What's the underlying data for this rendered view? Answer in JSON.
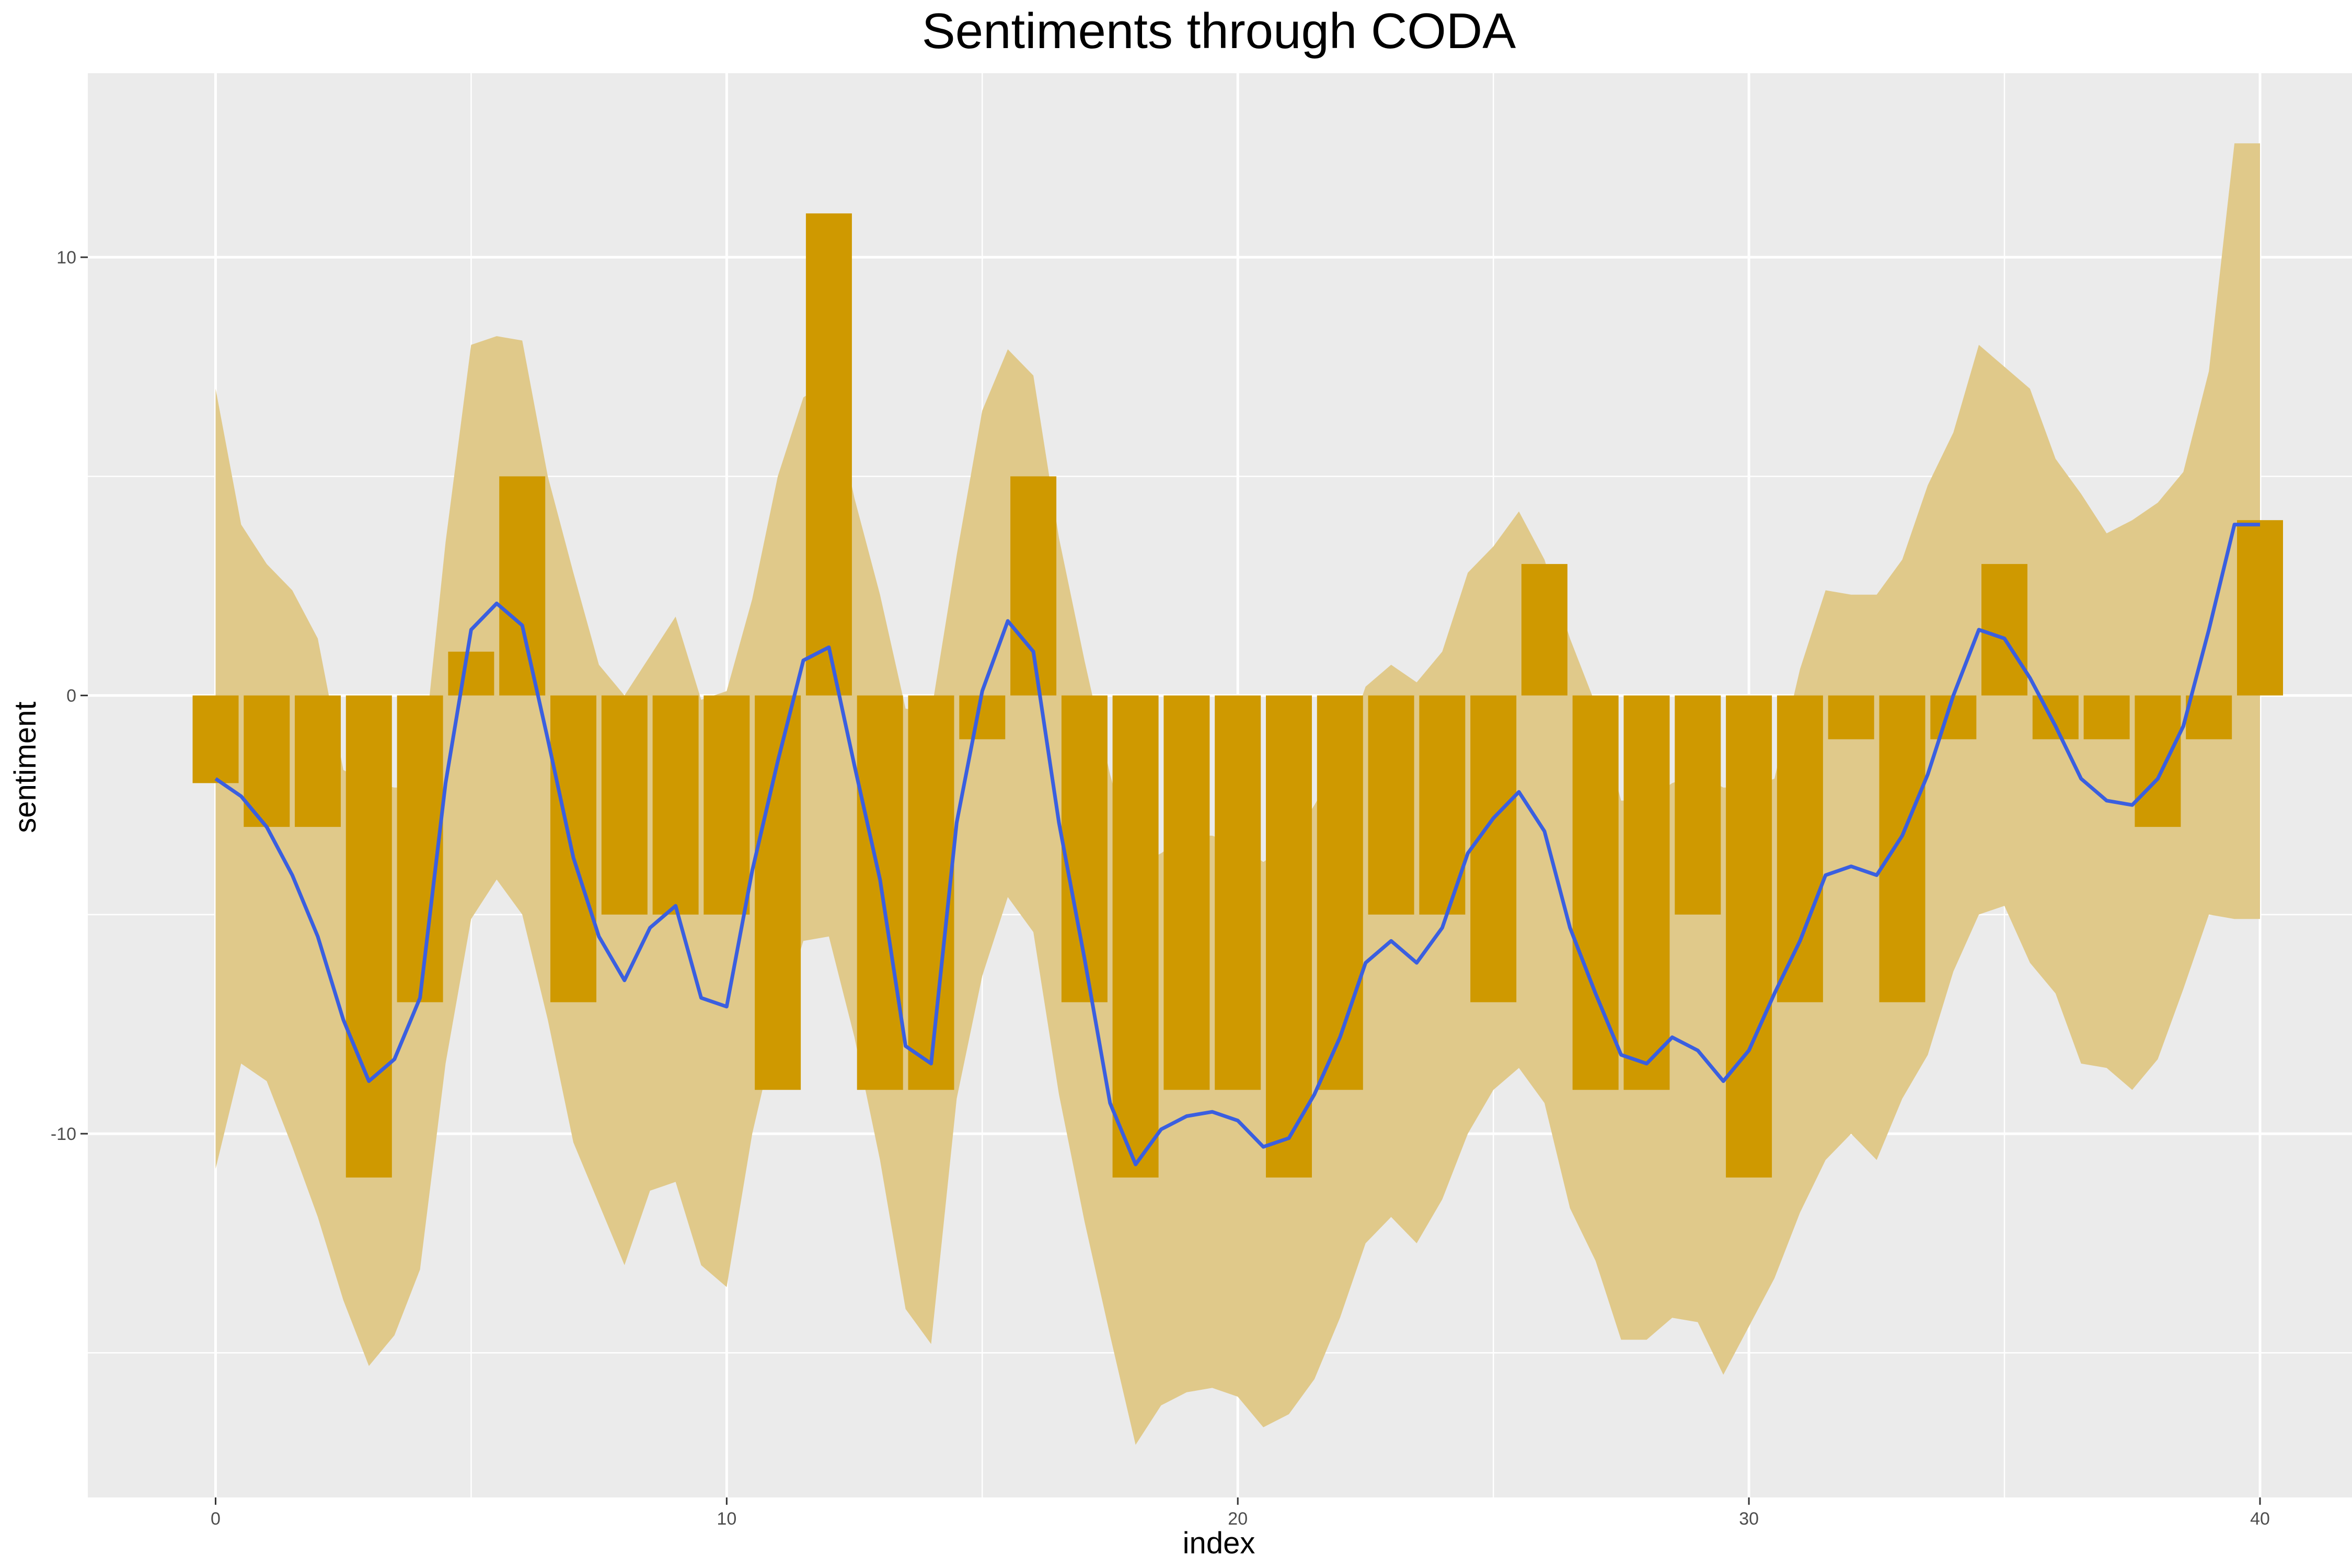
{
  "chart_data": {
    "type": "bar",
    "title": "Sentiments through CODA",
    "xlabel": "index",
    "ylabel": "sentiment",
    "xlim": [
      -2.5,
      41.8
    ],
    "ylim": [
      -18.3,
      14.2
    ],
    "x_ticks": [
      0,
      10,
      20,
      30,
      40
    ],
    "x_tick_labels": [
      "0",
      "10",
      "20",
      "30",
      "40"
    ],
    "y_ticks": [
      -10,
      0,
      10
    ],
    "y_tick_labels": [
      "-10",
      "0",
      "10"
    ],
    "grid": true,
    "legend": "none",
    "bars": {
      "x": [
        0,
        1,
        2,
        3,
        4,
        5,
        6,
        7,
        8,
        9,
        10,
        11,
        12,
        13,
        14,
        15,
        16,
        17,
        18,
        19,
        20,
        21,
        22,
        23,
        24,
        25,
        26,
        27,
        28,
        29,
        30,
        31,
        32,
        33,
        34,
        35,
        36,
        37,
        38,
        39,
        40
      ],
      "values": [
        -2,
        -3,
        -3,
        -11,
        -7,
        1,
        5,
        -7,
        -5,
        -5,
        -5,
        -9,
        11,
        -9,
        -9,
        -1,
        5,
        -7,
        -11,
        -9,
        -9,
        -11,
        -9,
        -5,
        -5,
        -7,
        3,
        -9,
        -9,
        -5,
        -11,
        -7,
        -1,
        -7,
        -1,
        3,
        -1,
        -1,
        -3,
        -1,
        4
      ],
      "width": 0.9
    },
    "smooth_line": {
      "x": [
        0,
        0.5,
        1,
        1.5,
        2,
        2.5,
        3,
        3.5,
        4,
        4.5,
        5,
        5.5,
        6,
        6.5,
        7,
        7.5,
        8,
        8.5,
        9,
        9.5,
        10,
        10.5,
        11,
        11.5,
        12,
        12.5,
        13,
        13.5,
        14,
        14.5,
        15,
        15.5,
        16,
        16.5,
        17,
        17.5,
        18,
        18.5,
        19,
        19.5,
        20,
        20.5,
        21,
        21.5,
        22,
        22.5,
        23,
        23.5,
        24,
        24.5,
        25,
        25.5,
        26,
        26.5,
        27,
        27.5,
        28,
        28.5,
        29,
        29.5,
        30,
        30.5,
        31,
        31.5,
        32,
        32.5,
        33,
        33.5,
        34,
        34.5,
        35,
        35.5,
        36,
        36.5,
        37,
        37.5,
        38,
        38.5,
        39,
        39.5,
        40
      ],
      "y": [
        -1.9,
        -2.3,
        -3,
        -4.1,
        -5.5,
        -7.4,
        -8.8,
        -8.3,
        -6.9,
        -2,
        1.5,
        2.1,
        1.6,
        -1,
        -3.7,
        -5.5,
        -6.5,
        -5.3,
        -4.8,
        -6.9,
        -7.1,
        -4,
        -1.5,
        0.8,
        1.1,
        -1.6,
        -4.2,
        -8,
        -8.4,
        -2.9,
        0.1,
        1.7,
        1,
        -2.9,
        -6,
        -9.3,
        -10.7,
        -9.9,
        -9.6,
        -9.5,
        -9.7,
        -10.3,
        -10.1,
        -9.1,
        -7.8,
        -6.1,
        -5.6,
        -6.1,
        -5.3,
        -3.6,
        -2.8,
        -2.2,
        -3.1,
        -5.3,
        -6.8,
        -8.2,
        -8.4,
        -7.8,
        -8.1,
        -8.8,
        -8.1,
        -6.8,
        -5.6,
        -4.1,
        -3.9,
        -4.1,
        -3.2,
        -1.8,
        0,
        1.5,
        1.3,
        0.4,
        -0.7,
        -1.9,
        -2.4,
        -2.5,
        -1.9,
        -0.7,
        1.5,
        3.9,
        3.9
      ],
      "color": "#3a5fe0"
    },
    "confidence_band": {
      "x": [
        0,
        0.5,
        1,
        1.5,
        2,
        2.5,
        3,
        3.5,
        4,
        4.5,
        5,
        5.5,
        6,
        6.5,
        7,
        7.5,
        8,
        8.5,
        9,
        9.5,
        10,
        10.5,
        11,
        11.5,
        12,
        12.5,
        13,
        13.5,
        14,
        14.5,
        15,
        15.5,
        16,
        16.5,
        17,
        17.5,
        18,
        18.5,
        19,
        19.5,
        20,
        20.5,
        21,
        21.5,
        22,
        22.5,
        23,
        23.5,
        24,
        24.5,
        25,
        25.5,
        26,
        26.5,
        27,
        27.5,
        28,
        28.5,
        29,
        29.5,
        30,
        30.5,
        31,
        31.5,
        32,
        32.5,
        33,
        33.5,
        34,
        34.5,
        35,
        35.5,
        36,
        36.5,
        37,
        37.5,
        38,
        38.5,
        39,
        39.5,
        40
      ],
      "upper": [
        7,
        3.9,
        3,
        2.4,
        1.3,
        -1.7,
        -2,
        -2.1,
        -2.1,
        3.5,
        8,
        8.2,
        8.1,
        5,
        2.8,
        0.7,
        0,
        0.9,
        1.8,
        -0.1,
        0.1,
        2.2,
        5,
        6.8,
        7.2,
        4.5,
        2.3,
        -0.3,
        -0.4,
        3.2,
        6.5,
        7.9,
        7.3,
        3.6,
        0.8,
        -1.8,
        -3.9,
        -3.6,
        -3.2,
        -3.2,
        -3.4,
        -3.8,
        -3.4,
        -2.5,
        -1.5,
        0.2,
        0.7,
        0.3,
        1,
        2.8,
        3.4,
        4.2,
        3.1,
        1.3,
        -0.2,
        -2.4,
        -2.4,
        -2,
        -1.8,
        -2.1,
        -2.1,
        -1.9,
        0.6,
        2.4,
        2.3,
        2.3,
        3.1,
        4.8,
        6,
        8,
        7.5,
        7,
        5.4,
        4.6,
        3.7,
        4,
        4.4,
        5.1,
        7.4,
        12.6,
        12.6
      ],
      "lower": [
        -10.8,
        -8.4,
        -8.8,
        -10.3,
        -11.9,
        -13.8,
        -15.3,
        -14.6,
        -13.1,
        -8.4,
        -5.1,
        -4.2,
        -5,
        -7.4,
        -10.2,
        -11.6,
        -13,
        -11.3,
        -11.1,
        -13,
        -13.5,
        -10,
        -7.5,
        -5.6,
        -5.5,
        -7.8,
        -10.6,
        -14,
        -14.8,
        -9.2,
        -6.4,
        -4.6,
        -5.4,
        -9.1,
        -12,
        -14.6,
        -17.1,
        -16.2,
        -15.9,
        -15.8,
        -16,
        -16.7,
        -16.4,
        -15.6,
        -14.2,
        -12.5,
        -11.9,
        -12.5,
        -11.5,
        -10,
        -9,
        -8.5,
        -9.3,
        -11.7,
        -12.9,
        -14.7,
        -14.7,
        -14.2,
        -14.3,
        -15.5,
        -14.4,
        -13.3,
        -11.8,
        -10.6,
        -10,
        -10.6,
        -9.2,
        -8.2,
        -6.3,
        -5,
        -4.8,
        -6.1,
        -6.8,
        -8.4,
        -8.5,
        -9,
        -8.3,
        -6.7,
        -5,
        -5.1,
        -5.1
      ],
      "color": "#e0c98a"
    },
    "bar_color": "#cf9900",
    "panel_background": "#ebebeb",
    "grid_color": "#ffffff"
  }
}
